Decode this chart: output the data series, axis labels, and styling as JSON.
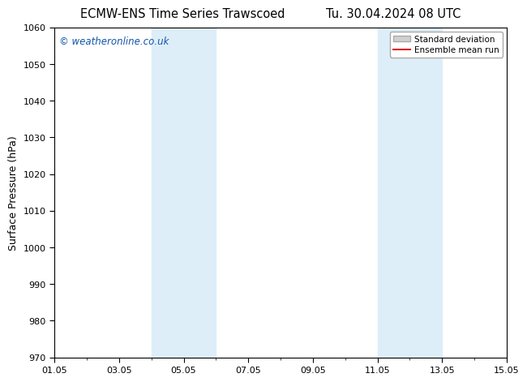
{
  "title_left": "ECMW-ENS Time Series Trawscoed",
  "title_right": "Tu. 30.04.2024 08 UTC",
  "ylabel": "Surface Pressure (hPa)",
  "ylim": [
    970,
    1060
  ],
  "yticks": [
    970,
    980,
    990,
    1000,
    1010,
    1020,
    1030,
    1040,
    1050,
    1060
  ],
  "xlim_days": [
    0,
    14
  ],
  "xtick_positions": [
    0,
    2,
    4,
    6,
    8,
    10,
    12,
    14
  ],
  "xtick_labels": [
    "01.05",
    "03.05",
    "05.05",
    "07.05",
    "09.05",
    "11.05",
    "13.05",
    "15.05"
  ],
  "shaded_regions": [
    {
      "xmin": 3.0,
      "xmax": 5.0
    },
    {
      "xmin": 10.0,
      "xmax": 12.0
    }
  ],
  "shade_color": "#ddeef8",
  "watermark_text": "© weatheronline.co.uk",
  "watermark_color": "#1155aa",
  "legend_entries": [
    "Standard deviation",
    "Ensemble mean run"
  ],
  "legend_patch_color": "#d0d0d0",
  "legend_line_color": "#dd2222",
  "background_color": "#ffffff",
  "plot_bg_color": "#ffffff",
  "title_fontsize": 10.5,
  "ylabel_fontsize": 9,
  "tick_fontsize": 8,
  "watermark_fontsize": 8.5,
  "legend_fontsize": 7.5
}
